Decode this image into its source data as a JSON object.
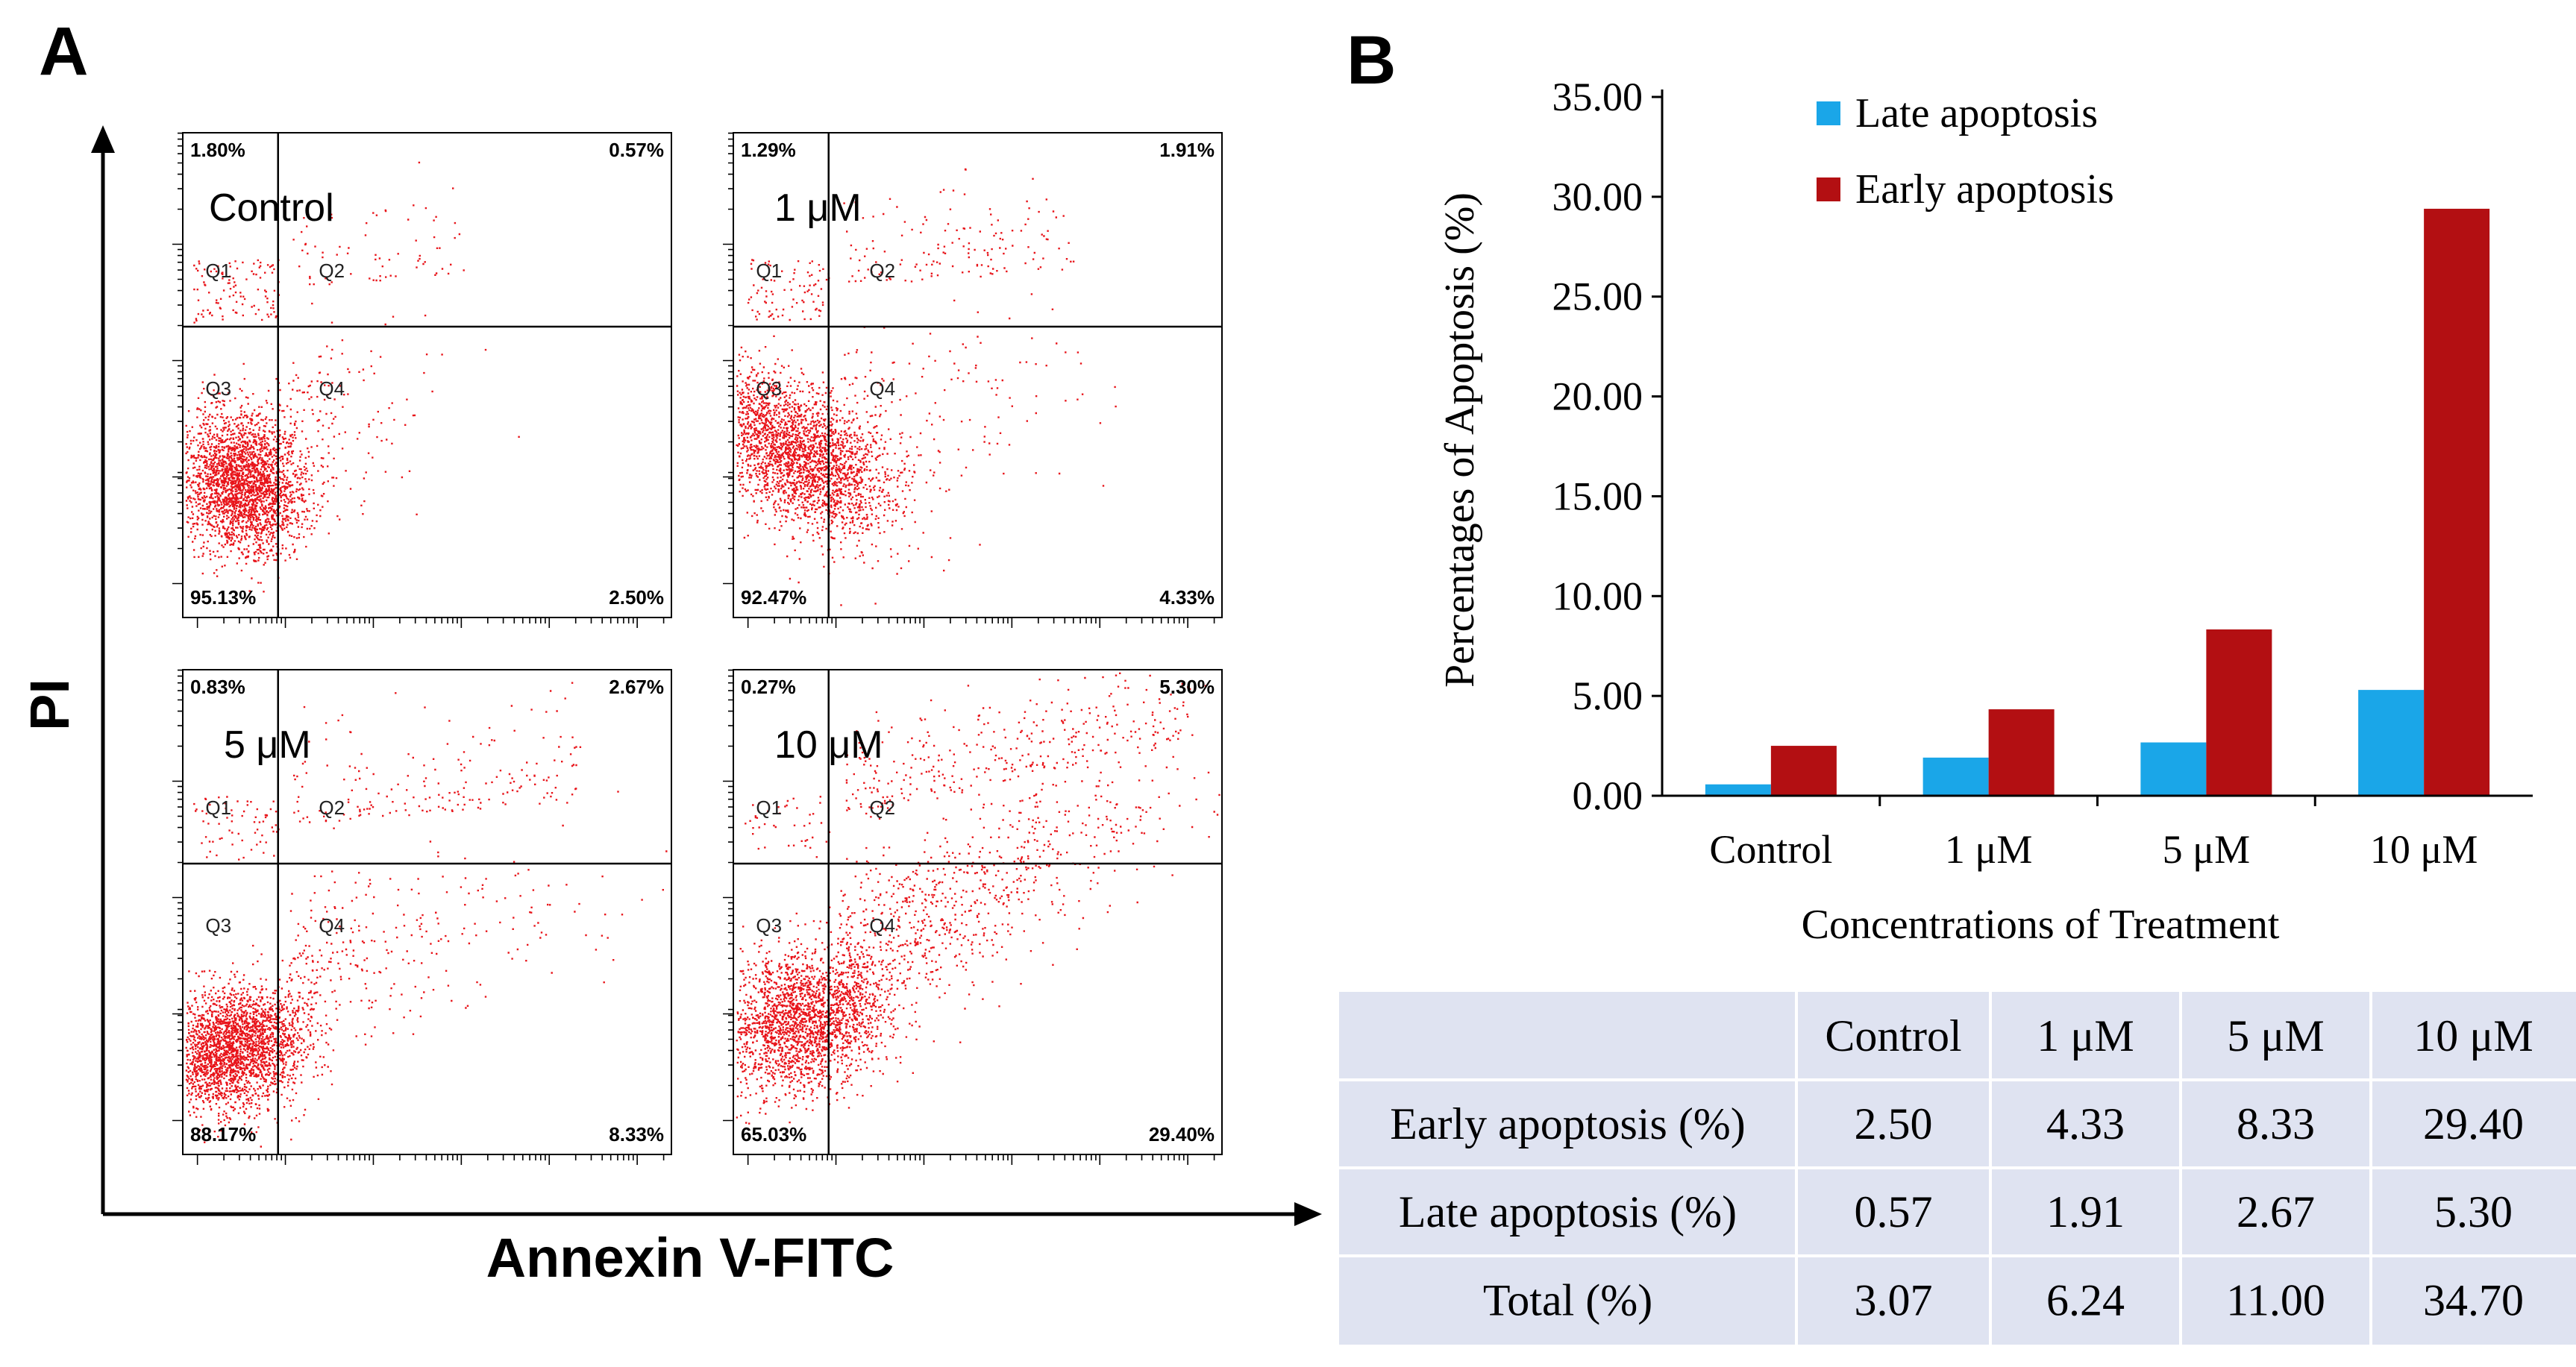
{
  "chart_data": [
    {
      "panel": "A",
      "type": "scatter",
      "title": "",
      "xlabel": "Annexin V-FITC",
      "ylabel": "PI",
      "plots": [
        {
          "condition": "Control",
          "quadrant_labels": [
            "Q1",
            "Q2",
            "Q3",
            "Q4"
          ],
          "Q1": "1.80%",
          "Q2": "0.57%",
          "Q3": "95.13%",
          "Q4": "2.50%"
        },
        {
          "condition": "1 μM",
          "quadrant_labels": [
            "Q1",
            "Q2",
            "Q3",
            "Q4"
          ],
          "Q1": "1.29%",
          "Q2": "1.91%",
          "Q3": "92.47%",
          "Q4": "4.33%"
        },
        {
          "condition": "5 μM",
          "quadrant_labels": [
            "Q1",
            "Q2",
            "Q3",
            "Q4"
          ],
          "Q1": "0.83%",
          "Q2": "2.67%",
          "Q3": "88.17%",
          "Q4": "8.33%"
        },
        {
          "condition": "10 μM",
          "quadrant_labels": [
            "Q1",
            "Q2",
            "Q3",
            "Q4"
          ],
          "Q1": "0.27%",
          "Q2": "5.30%",
          "Q3": "65.03%",
          "Q4": "29.40%"
        }
      ],
      "point_color": "#e8141a"
    },
    {
      "panel": "B",
      "type": "bar",
      "title": "",
      "xlabel": "Concentrations of Treatment",
      "ylabel": "Percentages of Apoptosis (%)",
      "categories": [
        "Control",
        "1 μM",
        "5 μM",
        "10 μM"
      ],
      "series": [
        {
          "name": "Late apoptosis",
          "color": "#1aa6e8",
          "values": [
            0.57,
            1.91,
            2.67,
            5.3
          ]
        },
        {
          "name": "Early apoptosis",
          "color": "#b30f12",
          "values": [
            2.5,
            4.33,
            8.33,
            29.4
          ]
        }
      ],
      "ylim": [
        0,
        35
      ],
      "yticks": [
        "0.00",
        "5.00",
        "10.00",
        "15.00",
        "20.00",
        "25.00",
        "30.00",
        "35.00"
      ],
      "legend_position": "top-left"
    },
    {
      "panel": "B",
      "type": "table",
      "columns": [
        "",
        "Control",
        "1 μM",
        "5 μM",
        "10 μM"
      ],
      "rows": [
        [
          "Early apoptosis (%)",
          "2.50",
          "4.33",
          "8.33",
          "29.40"
        ],
        [
          "Late apoptosis (%)",
          "0.57",
          "1.91",
          "2.67",
          "5.30"
        ],
        [
          "Total (%)",
          "3.07",
          "6.24",
          "11.00",
          "34.70"
        ]
      ],
      "background": "#dfe3f1"
    }
  ],
  "panel_labels": {
    "a": "A",
    "b": "B"
  }
}
